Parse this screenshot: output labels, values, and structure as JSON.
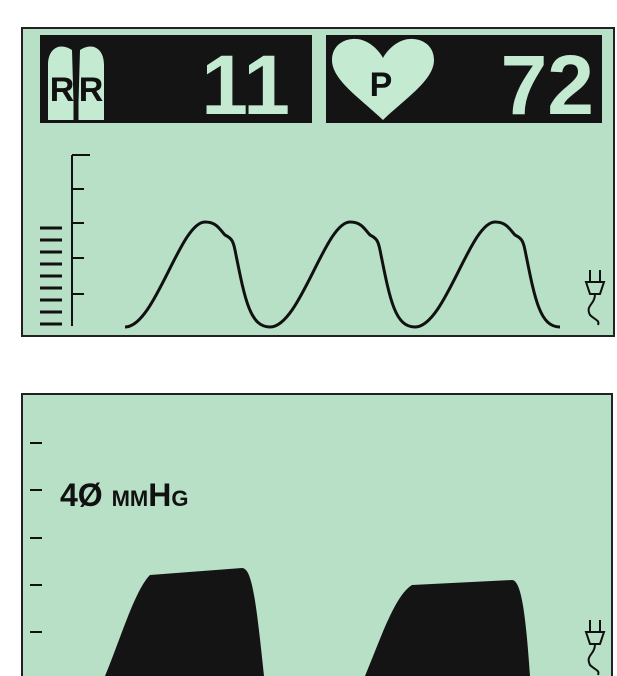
{
  "header": {
    "rr_label": [
      "R",
      "R"
    ],
    "rr_value": "11",
    "pulse_label": "P",
    "pulse_value": "72"
  },
  "capnogram": {
    "label": "4Ø mmHg"
  }
}
